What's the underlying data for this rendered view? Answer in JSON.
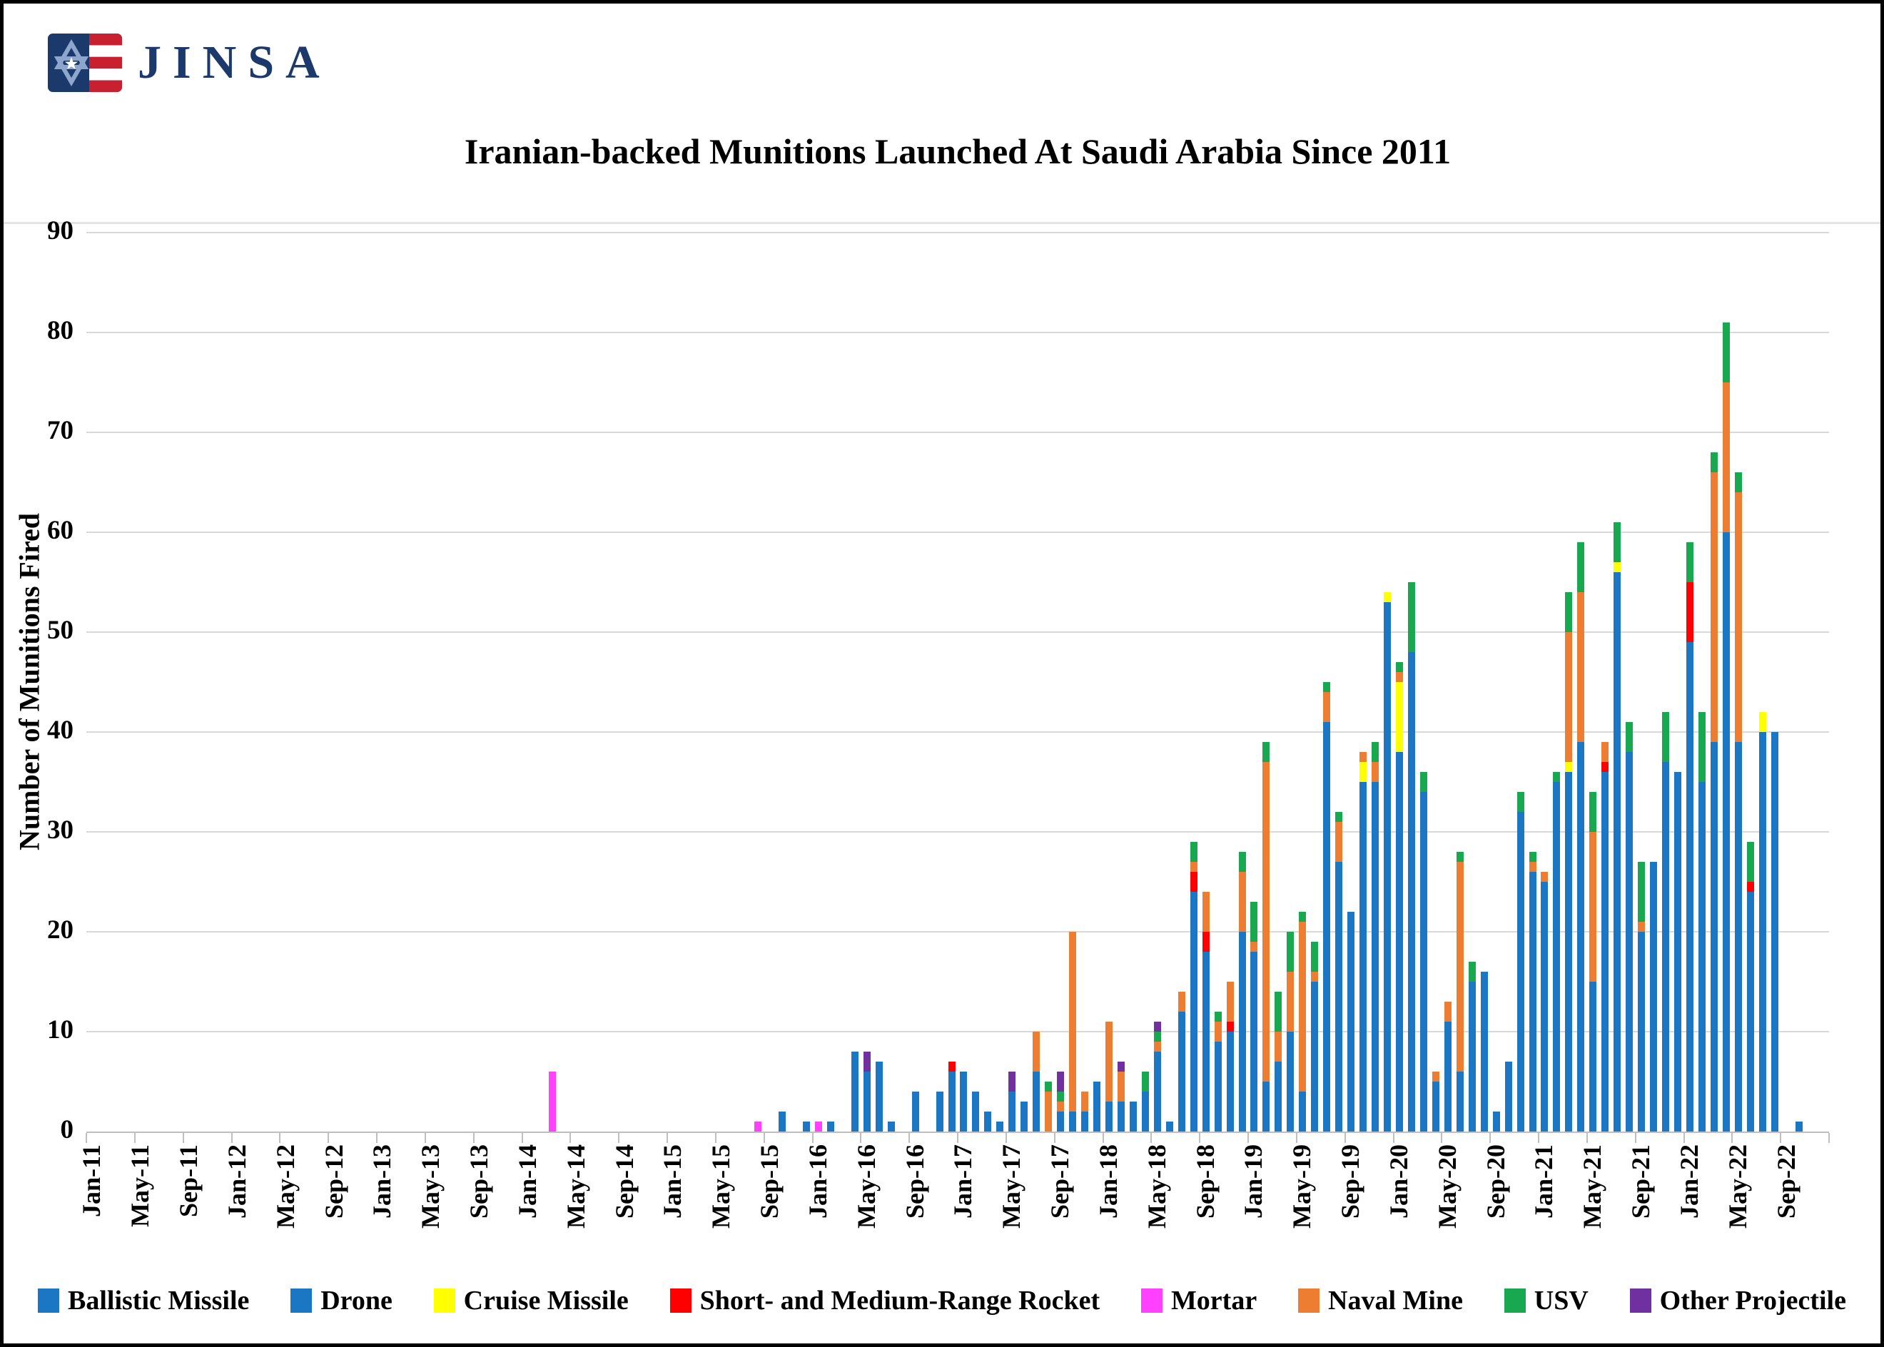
{
  "logo": {
    "text": "JINSA"
  },
  "chart_data": {
    "type": "bar",
    "subtype": "stacked-monthly",
    "title": "Iranian-backed Munitions Launched At Saudi Arabia Since 2011",
    "ylabel": "Number of Munitions Fired",
    "ylim": [
      0,
      90
    ],
    "y_ticks": [
      0,
      10,
      20,
      30,
      40,
      50,
      60,
      70,
      80,
      90
    ],
    "grid": "horizontal",
    "grid_color": "#D9D9D9",
    "axis_color": "#BFBFBF",
    "months_on_axis": 144,
    "x_start_label": "Jan-11",
    "x_tick_labels": [
      "Jan-11",
      "May-11",
      "Sep-11",
      "Jan-12",
      "May-12",
      "Sep-12",
      "Jan-13",
      "May-13",
      "Sep-13",
      "Jan-14",
      "May-14",
      "Sep-14",
      "Jan-15",
      "May-15",
      "Sep-15",
      "Jan-16",
      "May-16",
      "Sep-16",
      "Jan-17",
      "May-17",
      "Sep-17",
      "Jan-18",
      "May-18",
      "Sep-18",
      "Jan-19",
      "May-19",
      "Sep-19",
      "Jan-20",
      "May-20",
      "Sep-20",
      "Jan-21",
      "May-21",
      "Sep-21",
      "Jan-22",
      "May-22",
      "Sep-22"
    ],
    "legend_position": "bottom",
    "legend": [
      {
        "label": "Ballistic Missile",
        "color": "#1B77C4"
      },
      {
        "label": "Drone",
        "color": "#1B77C4"
      },
      {
        "label": "Cruise Missile",
        "color": "#FFFF00"
      },
      {
        "label": "Short- and Medium-Range Rocket",
        "color": "#FF0000"
      },
      {
        "label": "Mortar",
        "color": "#FF40FF"
      },
      {
        "label": "Naval Mine",
        "color": "#ED7D31"
      },
      {
        "label": "USV",
        "color": "#17A850"
      },
      {
        "label": "Other Projectile",
        "color": "#7030A0"
      }
    ],
    "note": "Ballistic Missile and Drone are drawn in the same blue in the source image; 'blue' values below are their combined visible stack.",
    "stack": [
      {
        "key": "blue",
        "color": "#1B77C4"
      },
      {
        "key": "cruise",
        "color": "#FFFF00"
      },
      {
        "key": "rocket",
        "color": "#FF0000"
      },
      {
        "key": "mortar",
        "color": "#FF40FF"
      },
      {
        "key": "naval",
        "color": "#ED7D31"
      },
      {
        "key": "usv",
        "color": "#17A850"
      },
      {
        "key": "other",
        "color": "#7030A0"
      }
    ],
    "bars": [
      {
        "i": 38,
        "month": "Mar-14",
        "mortar": 6
      },
      {
        "i": 55,
        "month": "Aug-15",
        "mortar": 1
      },
      {
        "i": 57,
        "month": "Oct-15",
        "blue": 2
      },
      {
        "i": 59,
        "month": "Dec-15",
        "blue": 1
      },
      {
        "i": 60,
        "month": "Jan-16",
        "mortar": 1
      },
      {
        "i": 61,
        "month": "Feb-16",
        "blue": 1
      },
      {
        "i": 63,
        "month": "Apr-16",
        "blue": 8
      },
      {
        "i": 64,
        "month": "May-16",
        "blue": 6,
        "other": 2
      },
      {
        "i": 65,
        "month": "Jun-16",
        "blue": 7
      },
      {
        "i": 66,
        "month": "Jul-16",
        "blue": 1
      },
      {
        "i": 68,
        "month": "Sep-16",
        "blue": 4
      },
      {
        "i": 70,
        "month": "Nov-16",
        "blue": 4
      },
      {
        "i": 71,
        "month": "Dec-16",
        "blue": 6,
        "rocket": 1
      },
      {
        "i": 72,
        "month": "Jan-17",
        "blue": 6
      },
      {
        "i": 73,
        "month": "Feb-17",
        "blue": 4
      },
      {
        "i": 74,
        "month": "Mar-17",
        "blue": 2
      },
      {
        "i": 75,
        "month": "Apr-17",
        "blue": 1
      },
      {
        "i": 76,
        "month": "May-17",
        "blue": 4,
        "other": 2
      },
      {
        "i": 77,
        "month": "Jun-17",
        "blue": 3
      },
      {
        "i": 78,
        "month": "Jul-17",
        "blue": 6,
        "naval": 4
      },
      {
        "i": 79,
        "month": "Aug-17",
        "naval": 4,
        "usv": 1
      },
      {
        "i": 80,
        "month": "Sep-17",
        "blue": 2,
        "naval": 1,
        "usv": 1,
        "other": 2
      },
      {
        "i": 81,
        "month": "Oct-17",
        "blue": 2,
        "naval": 18
      },
      {
        "i": 82,
        "month": "Nov-17",
        "blue": 2,
        "naval": 2
      },
      {
        "i": 83,
        "month": "Dec-17",
        "blue": 5
      },
      {
        "i": 84,
        "month": "Jan-18",
        "blue": 3,
        "naval": 8
      },
      {
        "i": 85,
        "month": "Feb-18",
        "blue": 3,
        "naval": 3,
        "other": 1
      },
      {
        "i": 86,
        "month": "Mar-18",
        "blue": 3
      },
      {
        "i": 87,
        "month": "Apr-18",
        "blue": 4,
        "usv": 2
      },
      {
        "i": 88,
        "month": "May-18",
        "blue": 8,
        "naval": 1,
        "usv": 1,
        "other": 1
      },
      {
        "i": 89,
        "month": "Jun-18",
        "blue": 1
      },
      {
        "i": 90,
        "month": "Jul-18",
        "blue": 12,
        "naval": 2
      },
      {
        "i": 91,
        "month": "Aug-18",
        "blue": 24,
        "rocket": 2,
        "naval": 1,
        "usv": 2
      },
      {
        "i": 92,
        "month": "Sep-18",
        "blue": 18,
        "rocket": 2,
        "naval": 4
      },
      {
        "i": 93,
        "month": "Oct-18",
        "blue": 9,
        "naval": 2,
        "usv": 1
      },
      {
        "i": 94,
        "month": "Nov-18",
        "blue": 10,
        "rocket": 1,
        "naval": 4
      },
      {
        "i": 95,
        "month": "Dec-18",
        "blue": 20,
        "naval": 6,
        "usv": 2
      },
      {
        "i": 96,
        "month": "Jan-19",
        "blue": 18,
        "naval": 1,
        "usv": 4
      },
      {
        "i": 97,
        "month": "Feb-19",
        "blue": 5,
        "naval": 32,
        "usv": 2
      },
      {
        "i": 98,
        "month": "Mar-19",
        "blue": 7,
        "naval": 3,
        "usv": 4
      },
      {
        "i": 99,
        "month": "Apr-19",
        "blue": 10,
        "naval": 6,
        "usv": 4
      },
      {
        "i": 100,
        "month": "May-19",
        "blue": 4,
        "naval": 17,
        "usv": 1
      },
      {
        "i": 101,
        "month": "Jun-19",
        "blue": 15,
        "naval": 1,
        "usv": 3
      },
      {
        "i": 102,
        "month": "Jul-19",
        "blue": 41,
        "naval": 3,
        "usv": 1
      },
      {
        "i": 103,
        "month": "Aug-19",
        "blue": 27,
        "naval": 4,
        "usv": 1
      },
      {
        "i": 104,
        "month": "Sep-19",
        "blue": 22
      },
      {
        "i": 105,
        "month": "Oct-19",
        "blue": 35,
        "cruise": 2,
        "naval": 1
      },
      {
        "i": 106,
        "month": "Nov-19",
        "blue": 35,
        "naval": 2,
        "usv": 2
      },
      {
        "i": 107,
        "month": "Dec-19",
        "blue": 53,
        "cruise": 1
      },
      {
        "i": 108,
        "month": "Jan-20",
        "blue": 38,
        "cruise": 7,
        "naval": 1,
        "usv": 1
      },
      {
        "i": 109,
        "month": "Feb-20",
        "blue": 48,
        "usv": 7
      },
      {
        "i": 110,
        "month": "Mar-20",
        "blue": 34,
        "usv": 2
      },
      {
        "i": 111,
        "month": "Apr-20",
        "blue": 5,
        "naval": 1
      },
      {
        "i": 112,
        "month": "May-20",
        "blue": 11,
        "naval": 2
      },
      {
        "i": 113,
        "month": "Jun-20",
        "blue": 6,
        "naval": 21,
        "usv": 1
      },
      {
        "i": 114,
        "month": "Jul-20",
        "blue": 15,
        "usv": 2
      },
      {
        "i": 115,
        "month": "Aug-20",
        "blue": 16
      },
      {
        "i": 116,
        "month": "Sep-20",
        "blue": 2
      },
      {
        "i": 117,
        "month": "Oct-20",
        "blue": 7
      },
      {
        "i": 118,
        "month": "Nov-20",
        "blue": 32,
        "usv": 2
      },
      {
        "i": 119,
        "month": "Dec-20",
        "blue": 26,
        "naval": 1,
        "usv": 1
      },
      {
        "i": 120,
        "month": "Jan-21",
        "blue": 25,
        "naval": 1
      },
      {
        "i": 121,
        "month": "Feb-21",
        "blue": 35,
        "usv": 1
      },
      {
        "i": 122,
        "month": "Mar-21",
        "blue": 36,
        "cruise": 1,
        "naval": 13,
        "usv": 4
      },
      {
        "i": 123,
        "month": "Apr-21",
        "blue": 39,
        "naval": 15,
        "usv": 5
      },
      {
        "i": 124,
        "month": "May-21",
        "blue": 15,
        "naval": 15,
        "usv": 4
      },
      {
        "i": 125,
        "month": "Jun-21",
        "blue": 36,
        "rocket": 1,
        "naval": 2
      },
      {
        "i": 126,
        "month": "Jul-21",
        "blue": 56,
        "cruise": 1,
        "usv": 4
      },
      {
        "i": 127,
        "month": "Aug-21",
        "blue": 38,
        "usv": 3
      },
      {
        "i": 128,
        "month": "Sep-21",
        "blue": 20,
        "naval": 1,
        "usv": 6
      },
      {
        "i": 129,
        "month": "Oct-21",
        "blue": 27
      },
      {
        "i": 130,
        "month": "Nov-21",
        "blue": 37,
        "usv": 5
      },
      {
        "i": 131,
        "month": "Dec-21",
        "blue": 36
      },
      {
        "i": 132,
        "month": "Jan-22",
        "blue": 49,
        "rocket": 6,
        "usv": 4
      },
      {
        "i": 133,
        "month": "Feb-22",
        "blue": 35,
        "usv": 7
      },
      {
        "i": 134,
        "month": "Mar-22",
        "blue": 39,
        "naval": 27,
        "usv": 2
      },
      {
        "i": 135,
        "month": "Apr-22",
        "blue": 60,
        "naval": 15,
        "usv": 6
      },
      {
        "i": 136,
        "month": "May-22",
        "blue": 39,
        "naval": 25,
        "usv": 2
      },
      {
        "i": 137,
        "month": "Jun-22",
        "blue": 24,
        "rocket": 1,
        "usv": 4
      },
      {
        "i": 138,
        "month": "Jul-22",
        "blue": 40,
        "cruise": 2
      },
      {
        "i": 139,
        "month": "Aug-22",
        "blue": 40
      },
      {
        "i": 141,
        "month": "Oct-22",
        "blue": 1
      }
    ]
  }
}
